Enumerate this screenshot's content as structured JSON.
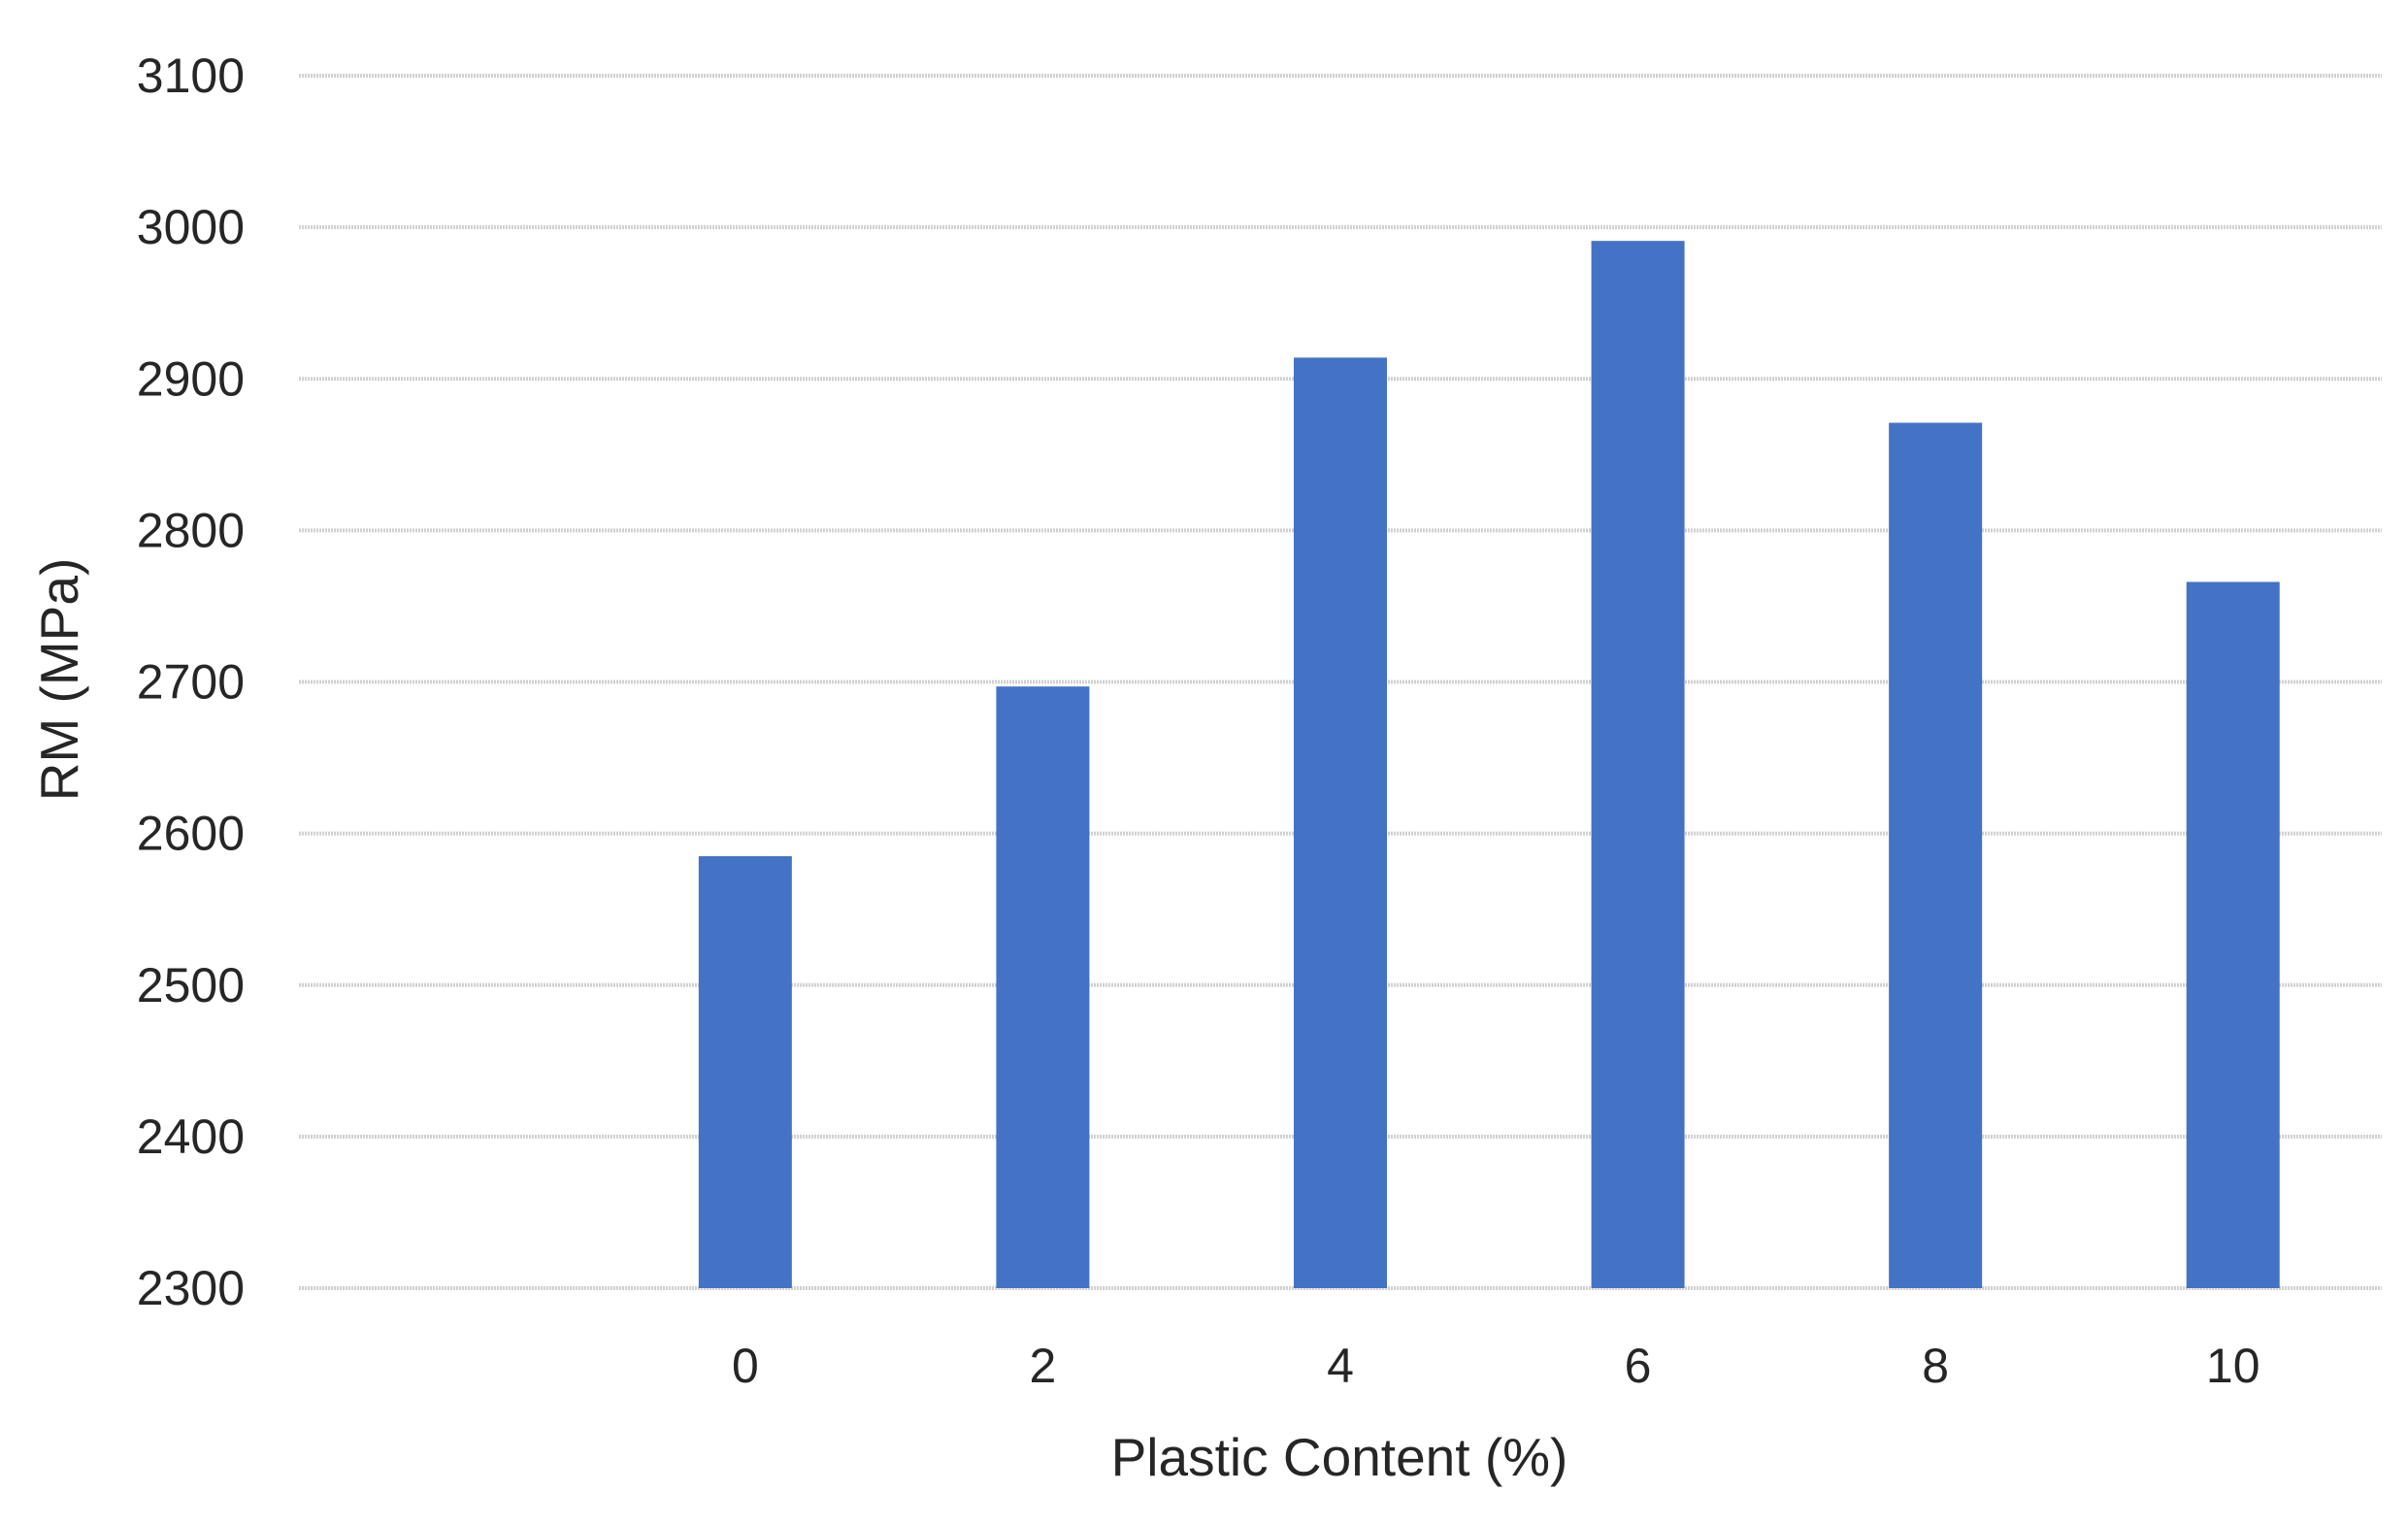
{
  "chart_data": {
    "type": "bar",
    "title": "",
    "xlabel": "Plastic Content (%)",
    "ylabel": "RM (MPa)",
    "categories": [
      "",
      "0",
      "2",
      "4",
      "6",
      "8",
      "10"
    ],
    "series": [
      {
        "values": [
          null,
          2585,
          2697,
          2914,
          2991,
          2871,
          2766
        ]
      }
    ],
    "ylim": [
      2300,
      3100
    ],
    "yticks": [
      "2300",
      "2400",
      "2500",
      "2600",
      "2700",
      "2800",
      "2900",
      "3000",
      "3100"
    ],
    "grid": true,
    "legend": "none",
    "bar_color": "#4472C4"
  }
}
